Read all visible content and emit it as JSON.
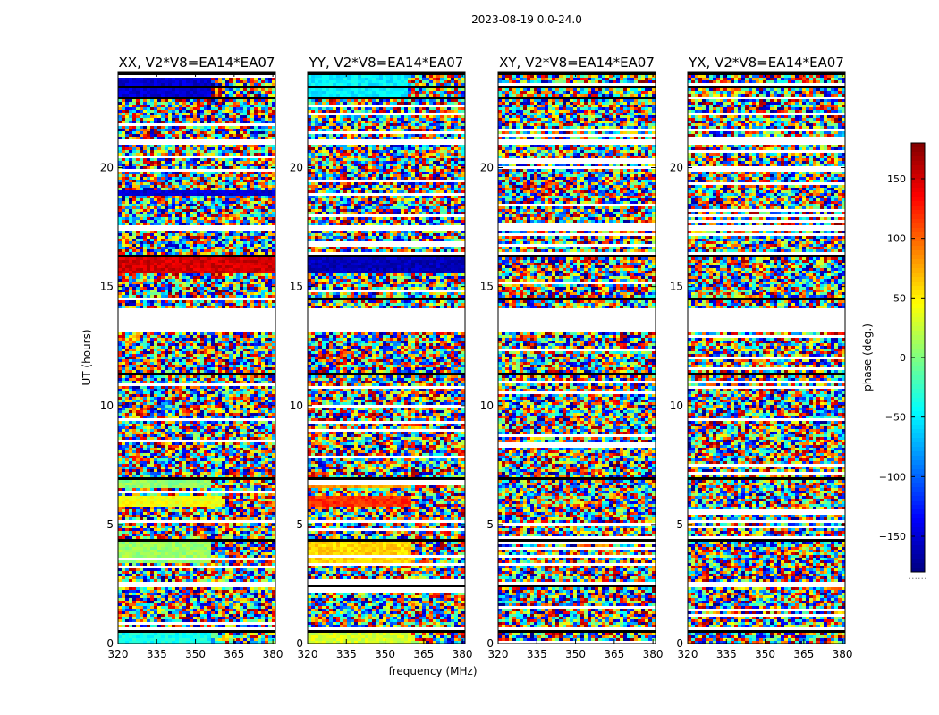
{
  "figure": {
    "suptitle": "2023-08-19 0.0-24.0",
    "xlabel": "frequency (MHz)",
    "ylabel": "UT (hours)",
    "colorbar_label": "phase (deg.)",
    "colorbar_footer": "......"
  },
  "chart_data": [
    {
      "type": "heatmap",
      "title": "XX, V2*V8=EA14*EA07",
      "x_range": [
        320,
        381
      ],
      "y_range": [
        0,
        24
      ],
      "x_ticks": [
        "320",
        "335",
        "350",
        "365",
        "380"
      ],
      "y_ticks": [
        "0",
        "5",
        "10",
        "15",
        "20"
      ],
      "value_range": [
        -180,
        180
      ],
      "colormap": "jet"
    },
    {
      "type": "heatmap",
      "title": "YY, V2*V8=EA14*EA07",
      "x_range": [
        320,
        381
      ],
      "y_range": [
        0,
        24
      ],
      "x_ticks": [
        "320",
        "335",
        "350",
        "365",
        "380"
      ],
      "y_ticks": [
        "0",
        "5",
        "10",
        "15",
        "20"
      ],
      "value_range": [
        -180,
        180
      ],
      "colormap": "jet"
    },
    {
      "type": "heatmap",
      "title": "XY, V2*V8=EA14*EA07",
      "x_range": [
        320,
        381
      ],
      "y_range": [
        0,
        24
      ],
      "x_ticks": [
        "320",
        "335",
        "350",
        "365",
        "380"
      ],
      "y_ticks": [
        "0",
        "5",
        "10",
        "15",
        "20"
      ],
      "value_range": [
        -180,
        180
      ],
      "colormap": "jet"
    },
    {
      "type": "heatmap",
      "title": "YX, V2*V8=EA14*EA07",
      "x_range": [
        320,
        381
      ],
      "y_range": [
        0,
        24
      ],
      "x_ticks": [
        "320",
        "335",
        "350",
        "365",
        "380"
      ],
      "y_ticks": [
        "0",
        "5",
        "10",
        "15",
        "20"
      ],
      "value_range": [
        -180,
        180
      ],
      "colormap": "jet"
    }
  ],
  "colorbar": {
    "range": [
      -180,
      180
    ],
    "ticks": [
      {
        "value": 150,
        "label": "150"
      },
      {
        "value": 100,
        "label": "100"
      },
      {
        "value": 50,
        "label": "50"
      },
      {
        "value": 0,
        "label": "0"
      },
      {
        "value": -50,
        "label": "−50"
      },
      {
        "value": -100,
        "label": "−100"
      },
      {
        "value": -150,
        "label": "−150"
      }
    ],
    "colormap": "jet"
  }
}
